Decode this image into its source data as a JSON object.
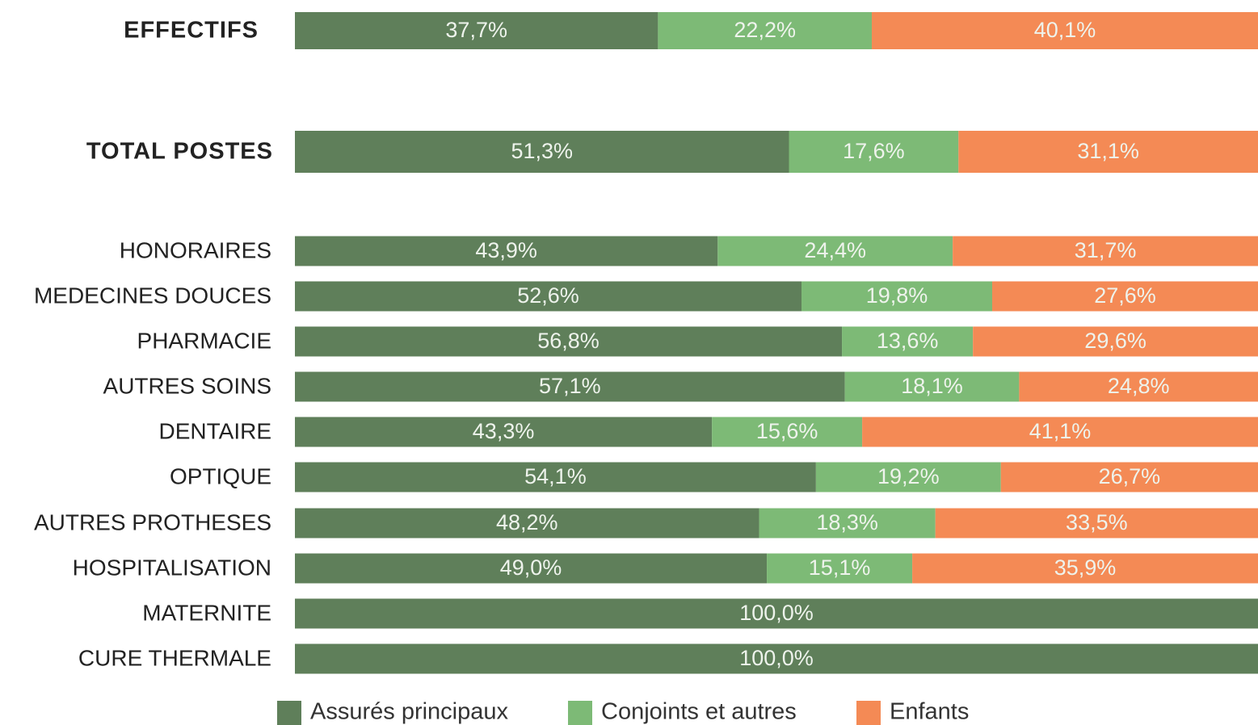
{
  "chart_data": {
    "type": "stacked_bar_horizontal",
    "categories": [
      "EFFECTIFS",
      "TOTAL POSTES",
      "HONORAIRES",
      "MEDECINES DOUCES",
      "PHARMACIE",
      "AUTRES SOINS",
      "DENTAIRE",
      "OPTIQUE",
      "AUTRES PROTHESES",
      "HOSPITALISATION",
      "MATERNITE",
      "CURE THERMALE"
    ],
    "xlim": [
      0,
      100
    ],
    "series": [
      {
        "name": "Assurés principaux",
        "color": "#5f7f5a",
        "values": [
          37.7,
          51.3,
          43.9,
          52.6,
          56.8,
          57.1,
          43.3,
          54.1,
          48.2,
          49.0,
          100.0,
          100.0
        ],
        "value_labels": [
          "37,7%",
          "51,3%",
          "43,9%",
          "52,6%",
          "56,8%",
          "57,1%",
          "43,3%",
          "54,1%",
          "48,2%",
          "49,0%",
          "100,0%",
          "100,0%"
        ]
      },
      {
        "name": "Conjoints et autres",
        "color": "#7dba76",
        "values": [
          22.2,
          17.6,
          24.4,
          19.8,
          13.6,
          18.1,
          15.6,
          19.2,
          18.3,
          15.1,
          0,
          0
        ],
        "value_labels": [
          "22,2%",
          "17,6%",
          "24,4%",
          "19,8%",
          "13,6%",
          "18,1%",
          "15,6%",
          "19,2%",
          "18,3%",
          "15,1%",
          null,
          null
        ]
      },
      {
        "name": "Enfants",
        "color": "#f48a55",
        "values": [
          40.1,
          31.1,
          31.7,
          27.6,
          29.6,
          24.8,
          41.1,
          26.7,
          33.5,
          35.9,
          0,
          0
        ],
        "value_labels": [
          "40,1%",
          "31,1%",
          "31,7%",
          "27,6%",
          "29,6%",
          "24,8%",
          "41,1%",
          "26,7%",
          "33,5%",
          "35,9%",
          null,
          null
        ]
      }
    ]
  }
}
